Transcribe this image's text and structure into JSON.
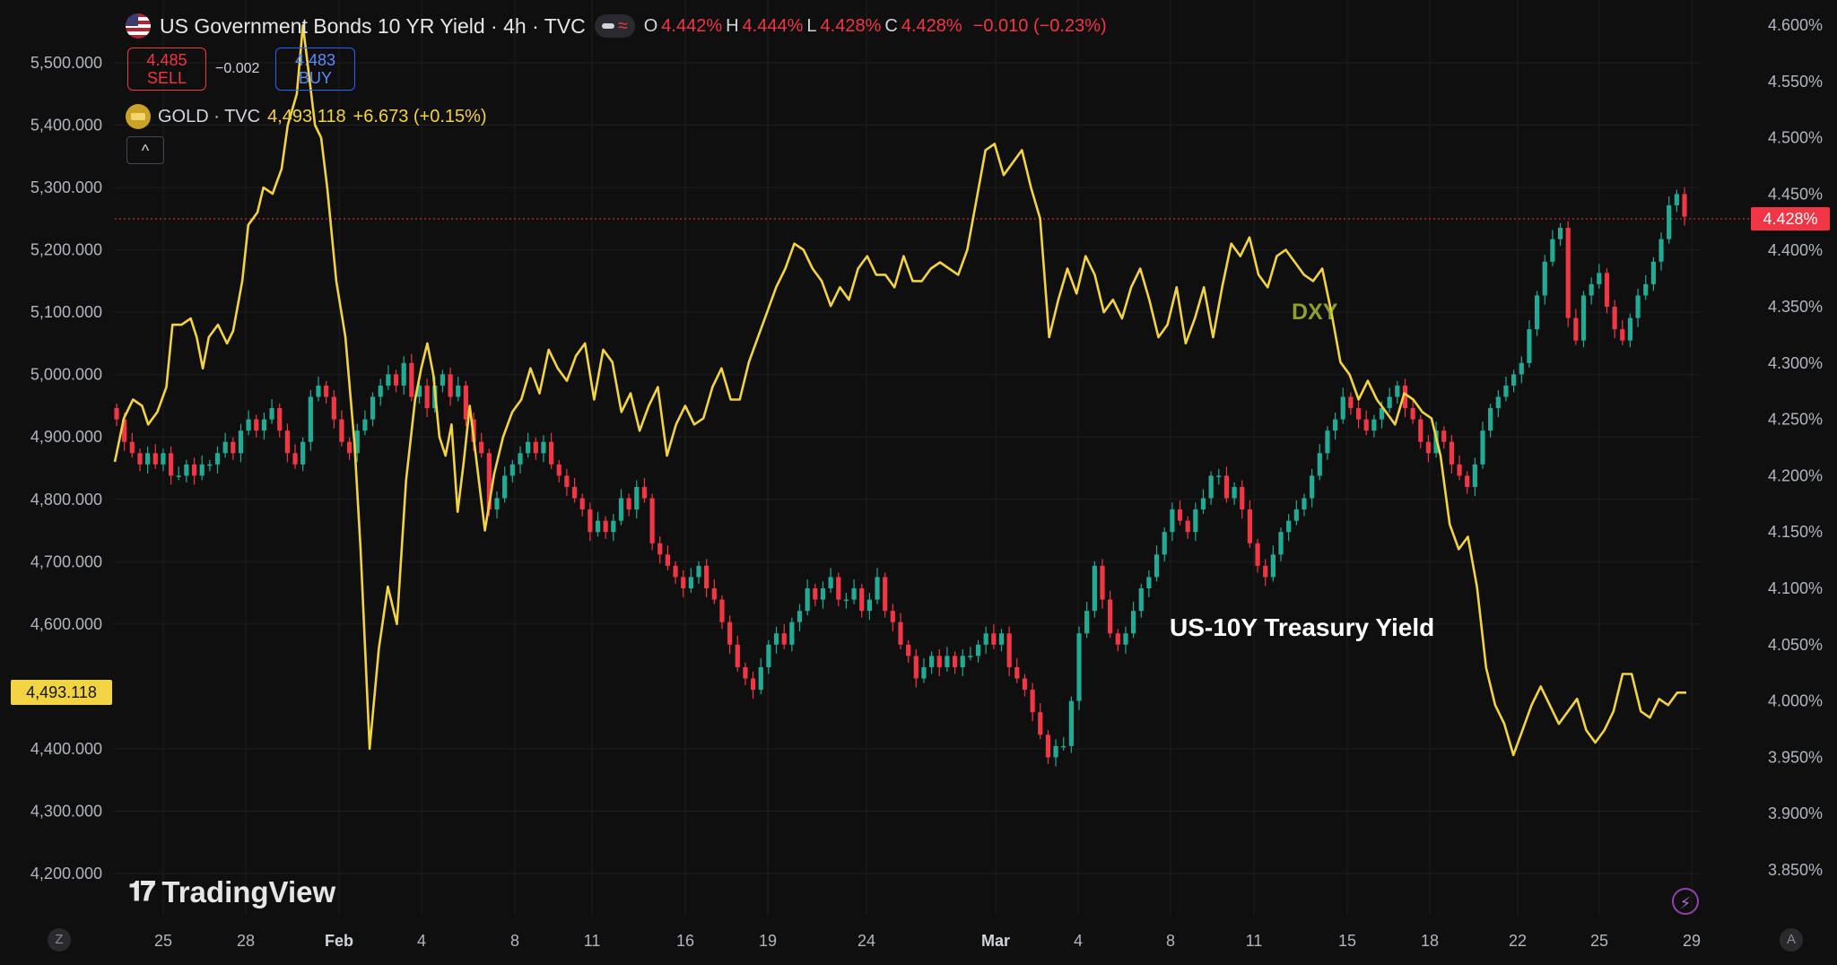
{
  "header": {
    "title": "US Government Bonds 10 YR Yield · 4h · TVC",
    "open_label": "O",
    "open": "4.442%",
    "high_label": "H",
    "high": "4.444%",
    "low_label": "L",
    "low": "4.428%",
    "close_label": "C",
    "close": "4.428%",
    "change": "−0.010 (−0.23%)"
  },
  "trade": {
    "sell_price": "4.485",
    "sell_label": "SELL",
    "spread": "−0.002",
    "buy_price": "4.483",
    "buy_label": "BUY"
  },
  "gold_legend": {
    "name": "GOLD · TVC",
    "value": "4,493.118",
    "change": "+6.673 (+0.15%)"
  },
  "annotations": {
    "dxy": "DXY",
    "ust": "US-10Y Treasury Yield"
  },
  "price_tags": {
    "gold_last": "4,493.118",
    "yield_last": "4.428%"
  },
  "branding": {
    "logo_text": "TradingView"
  },
  "controls": {
    "left_zoom": "Z",
    "right_auto": "A",
    "collapse": "^"
  },
  "colors": {
    "background": "#0f0f0f",
    "up": "#22ab94",
    "down": "#f23645",
    "gold_line": "#f2d341",
    "grid": "#1f1f1f"
  },
  "chart_data": {
    "type": "line",
    "title": "US Government Bonds 10 YR Yield · 4h · TVC",
    "x_ticks": [
      {
        "label": "25",
        "bold": false
      },
      {
        "label": "28",
        "bold": false
      },
      {
        "label": "Feb",
        "bold": true
      },
      {
        "label": "4",
        "bold": false
      },
      {
        "label": "8",
        "bold": false
      },
      {
        "label": "11",
        "bold": false
      },
      {
        "label": "16",
        "bold": false
      },
      {
        "label": "19",
        "bold": false
      },
      {
        "label": "24",
        "bold": false
      },
      {
        "label": "Mar",
        "bold": true
      },
      {
        "label": "4",
        "bold": false
      },
      {
        "label": "8",
        "bold": false
      },
      {
        "label": "11",
        "bold": false
      },
      {
        "label": "15",
        "bold": false
      },
      {
        "label": "18",
        "bold": false
      },
      {
        "label": "22",
        "bold": false
      },
      {
        "label": "25",
        "bold": false
      },
      {
        "label": "29",
        "bold": false
      }
    ],
    "left_axis": {
      "ticks": [
        "5,500.000",
        "5,400.000",
        "5,300.000",
        "5,200.000",
        "5,100.000",
        "5,000.000",
        "4,900.000",
        "4,800.000",
        "4,700.000",
        "4,600.000",
        "4,400.000",
        "4,300.000",
        "4,200.000"
      ],
      "range": [
        4200,
        5500
      ]
    },
    "right_axis": {
      "ticks": [
        "4.600%",
        "4.550%",
        "4.500%",
        "4.450%",
        "4.400%",
        "4.350%",
        "4.300%",
        "4.250%",
        "4.200%",
        "4.150%",
        "4.100%",
        "4.050%",
        "4.000%",
        "3.950%",
        "3.900%",
        "3.850%"
      ],
      "range": [
        3.85,
        4.6
      ]
    },
    "gold_series": {
      "name": "GOLD · TVC",
      "points": [
        [
          0,
          4860
        ],
        [
          3,
          4930
        ],
        [
          6,
          4960
        ],
        [
          9,
          4950
        ],
        [
          11,
          4920
        ],
        [
          14,
          4940
        ],
        [
          17,
          4980
        ],
        [
          19,
          5080
        ],
        [
          22,
          5080
        ],
        [
          25,
          5090
        ],
        [
          27,
          5060
        ],
        [
          29,
          5010
        ],
        [
          31,
          5060
        ],
        [
          34,
          5080
        ],
        [
          37,
          5050
        ],
        [
          39,
          5070
        ],
        [
          42,
          5150
        ],
        [
          44,
          5240
        ],
        [
          47,
          5260
        ],
        [
          49,
          5300
        ],
        [
          52,
          5290
        ],
        [
          55,
          5330
        ],
        [
          57,
          5400
        ],
        [
          60,
          5450
        ],
        [
          62,
          5560
        ],
        [
          64,
          5480
        ],
        [
          66,
          5400
        ],
        [
          68,
          5380
        ],
        [
          70,
          5300
        ],
        [
          73,
          5150
        ],
        [
          76,
          5060
        ],
        [
          79,
          4890
        ],
        [
          81,
          4720
        ],
        [
          84,
          4400
        ],
        [
          87,
          4560
        ],
        [
          90,
          4660
        ],
        [
          93,
          4600
        ],
        [
          96,
          4830
        ],
        [
          99,
          4960
        ],
        [
          101,
          5010
        ],
        [
          103,
          5050
        ],
        [
          105,
          5000
        ],
        [
          107,
          4900
        ],
        [
          109,
          4870
        ],
        [
          111,
          4920
        ],
        [
          113,
          4780
        ],
        [
          115,
          4860
        ],
        [
          117,
          4950
        ],
        [
          120,
          4830
        ],
        [
          122,
          4750
        ],
        [
          125,
          4840
        ],
        [
          128,
          4900
        ],
        [
          131,
          4940
        ],
        [
          134,
          4960
        ],
        [
          137,
          5010
        ],
        [
          140,
          4970
        ],
        [
          143,
          5040
        ],
        [
          146,
          5010
        ],
        [
          149,
          4990
        ],
        [
          152,
          5030
        ],
        [
          155,
          5050
        ],
        [
          158,
          4960
        ],
        [
          161,
          5040
        ],
        [
          164,
          5020
        ],
        [
          167,
          4940
        ],
        [
          170,
          4970
        ],
        [
          173,
          4910
        ],
        [
          176,
          4950
        ],
        [
          179,
          4980
        ],
        [
          182,
          4870
        ],
        [
          185,
          4920
        ],
        [
          188,
          4950
        ],
        [
          191,
          4920
        ],
        [
          194,
          4930
        ],
        [
          197,
          4980
        ],
        [
          200,
          5010
        ],
        [
          203,
          4960
        ],
        [
          206,
          4960
        ],
        [
          209,
          5020
        ],
        [
          212,
          5060
        ],
        [
          215,
          5100
        ],
        [
          218,
          5140
        ],
        [
          221,
          5170
        ],
        [
          224,
          5210
        ],
        [
          227,
          5200
        ],
        [
          230,
          5170
        ],
        [
          233,
          5150
        ],
        [
          236,
          5110
        ],
        [
          239,
          5140
        ],
        [
          242,
          5120
        ],
        [
          245,
          5170
        ],
        [
          248,
          5190
        ],
        [
          251,
          5160
        ],
        [
          254,
          5160
        ],
        [
          257,
          5140
        ],
        [
          260,
          5190
        ],
        [
          263,
          5150
        ],
        [
          266,
          5150
        ],
        [
          269,
          5170
        ],
        [
          272,
          5180
        ],
        [
          275,
          5170
        ],
        [
          278,
          5160
        ],
        [
          281,
          5200
        ],
        [
          284,
          5280
        ],
        [
          287,
          5360
        ],
        [
          290,
          5370
        ],
        [
          293,
          5320
        ],
        [
          296,
          5340
        ],
        [
          299,
          5360
        ],
        [
          302,
          5300
        ],
        [
          305,
          5250
        ],
        [
          308,
          5060
        ],
        [
          311,
          5120
        ],
        [
          314,
          5170
        ],
        [
          317,
          5130
        ],
        [
          320,
          5190
        ],
        [
          323,
          5160
        ],
        [
          326,
          5100
        ],
        [
          329,
          5120
        ],
        [
          332,
          5090
        ],
        [
          335,
          5140
        ],
        [
          338,
          5170
        ],
        [
          341,
          5120
        ],
        [
          344,
          5060
        ],
        [
          347,
          5080
        ],
        [
          350,
          5140
        ],
        [
          353,
          5050
        ],
        [
          356,
          5090
        ],
        [
          359,
          5140
        ],
        [
          362,
          5060
        ],
        [
          365,
          5140
        ],
        [
          368,
          5210
        ],
        [
          371,
          5190
        ],
        [
          374,
          5220
        ],
        [
          377,
          5160
        ],
        [
          380,
          5140
        ],
        [
          383,
          5190
        ],
        [
          386,
          5200
        ],
        [
          389,
          5180
        ],
        [
          392,
          5160
        ],
        [
          395,
          5150
        ],
        [
          398,
          5170
        ],
        [
          401,
          5100
        ],
        [
          404,
          5020
        ],
        [
          407,
          5000
        ],
        [
          410,
          4960
        ],
        [
          413,
          4990
        ],
        [
          416,
          4960
        ],
        [
          419,
          4940
        ],
        [
          422,
          4920
        ],
        [
          425,
          4970
        ],
        [
          428,
          4960
        ],
        [
          431,
          4940
        ],
        [
          434,
          4930
        ],
        [
          437,
          4870
        ],
        [
          440,
          4760
        ],
        [
          443,
          4720
        ],
        [
          446,
          4740
        ],
        [
          449,
          4660
        ],
        [
          452,
          4530
        ],
        [
          455,
          4470
        ],
        [
          458,
          4440
        ],
        [
          461,
          4390
        ],
        [
          464,
          4430
        ],
        [
          467,
          4470
        ],
        [
          470,
          4500
        ],
        [
          473,
          4470
        ],
        [
          476,
          4440
        ],
        [
          479,
          4460
        ],
        [
          482,
          4480
        ],
        [
          485,
          4430
        ],
        [
          488,
          4410
        ],
        [
          491,
          4430
        ],
        [
          494,
          4460
        ],
        [
          497,
          4520
        ],
        [
          500,
          4520
        ],
        [
          503,
          4460
        ],
        [
          506,
          4450
        ],
        [
          509,
          4480
        ],
        [
          512,
          4470
        ],
        [
          515,
          4490
        ],
        [
          518,
          4490
        ]
      ]
    },
    "yield_candles": {
      "name": "US Government Bonds 10 YR Yield",
      "timeframe": "4h",
      "closes": [
        4.25,
        4.23,
        4.22,
        4.21,
        4.22,
        4.21,
        4.22,
        4.2,
        4.2,
        4.21,
        4.2,
        4.21,
        4.21,
        4.22,
        4.23,
        4.22,
        4.24,
        4.25,
        4.24,
        4.25,
        4.26,
        4.24,
        4.22,
        4.21,
        4.23,
        4.27,
        4.28,
        4.27,
        4.25,
        4.23,
        4.22,
        4.24,
        4.25,
        4.27,
        4.28,
        4.29,
        4.28,
        4.3,
        4.27,
        4.28,
        4.26,
        4.28,
        4.29,
        4.27,
        4.28,
        4.25,
        4.23,
        4.22,
        4.17,
        4.18,
        4.2,
        4.21,
        4.22,
        4.23,
        4.22,
        4.23,
        4.21,
        4.2,
        4.19,
        4.18,
        4.17,
        4.15,
        4.16,
        4.15,
        4.16,
        4.18,
        4.17,
        4.19,
        4.18,
        4.14,
        4.13,
        4.12,
        4.11,
        4.1,
        4.11,
        4.12,
        4.1,
        4.09,
        4.07,
        4.05,
        4.03,
        4.02,
        4.01,
        4.03,
        4.05,
        4.06,
        4.05,
        4.07,
        4.08,
        4.1,
        4.09,
        4.1,
        4.11,
        4.09,
        4.09,
        4.1,
        4.08,
        4.09,
        4.11,
        4.08,
        4.07,
        4.05,
        4.04,
        4.02,
        4.03,
        4.04,
        4.03,
        4.04,
        4.03,
        4.04,
        4.04,
        4.05,
        4.06,
        4.05,
        4.06,
        4.03,
        4.02,
        4.01,
        3.99,
        3.97,
        3.95,
        3.96,
        3.96,
        4.0,
        4.06,
        4.08,
        4.12,
        4.09,
        4.06,
        4.05,
        4.06,
        4.08,
        4.1,
        4.11,
        4.13,
        4.15,
        4.17,
        4.16,
        4.15,
        4.17,
        4.18,
        4.2,
        4.2,
        4.18,
        4.19,
        4.17,
        4.14,
        4.12,
        4.11,
        4.13,
        4.15,
        4.16,
        4.17,
        4.18,
        4.2,
        4.22,
        4.24,
        4.25,
        4.27,
        4.26,
        4.25,
        4.24,
        4.25,
        4.26,
        4.27,
        4.28,
        4.26,
        4.25,
        4.23,
        4.22,
        4.24,
        4.23,
        4.21,
        4.2,
        4.19,
        4.21,
        4.24,
        4.26,
        4.27,
        4.28,
        4.29,
        4.3,
        4.33,
        4.36,
        4.39,
        4.41,
        4.42,
        4.34,
        4.32,
        4.36,
        4.37,
        4.38,
        4.35,
        4.33,
        4.32,
        4.34,
        4.36,
        4.37,
        4.39,
        4.41,
        4.44,
        4.45,
        4.43
      ]
    }
  }
}
